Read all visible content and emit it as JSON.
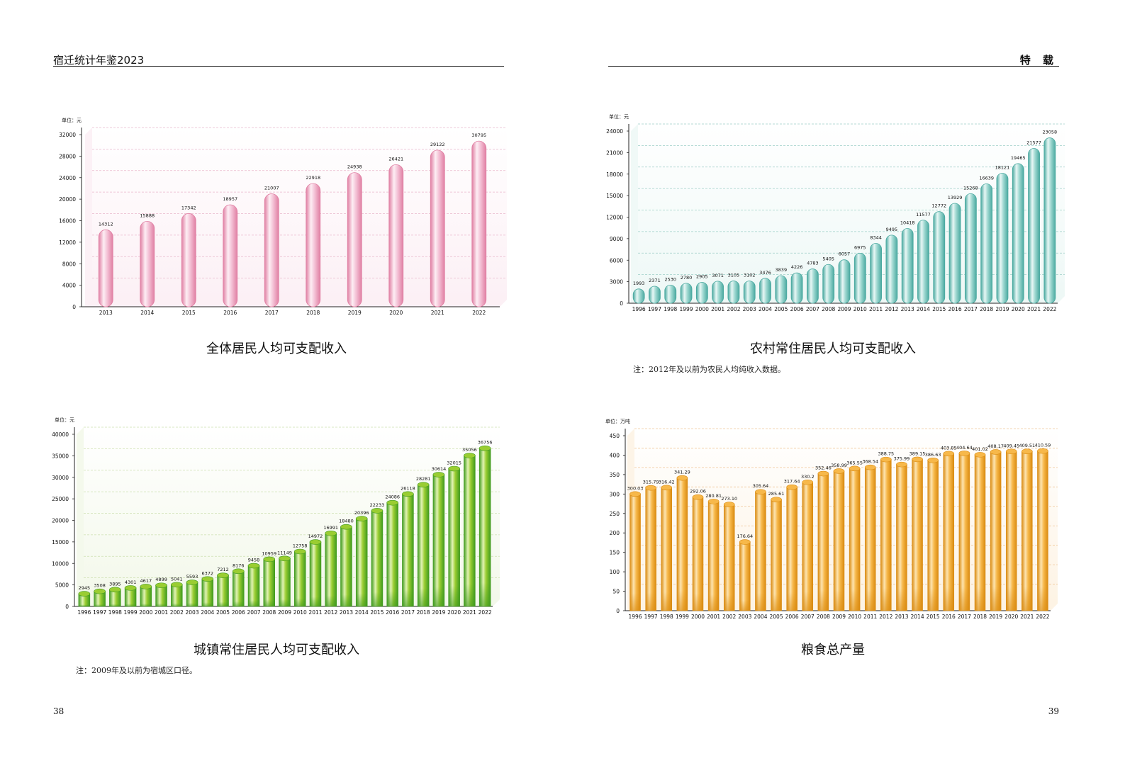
{
  "header": {
    "left_title": "宿迁统计年鉴2023",
    "right_title": "特 载"
  },
  "page_numbers": {
    "left": "38",
    "right": "39"
  },
  "chart_data": [
    {
      "type": "bar",
      "title": "全体居民人均可支配收入",
      "unit_label": "单位：元",
      "theme": "pink",
      "categories": [
        "2013",
        "2014",
        "2015",
        "2016",
        "2017",
        "2018",
        "2019",
        "2020",
        "2021",
        "2022"
      ],
      "values": [
        14312,
        15888,
        17342,
        18957,
        21007,
        22918,
        24938,
        26421,
        29122,
        30795
      ],
      "value_labels": [
        "14312",
        "15888",
        "17342",
        "18957",
        "21007",
        "22918",
        "24938",
        "26421",
        "29122",
        "30795"
      ],
      "ylim": [
        0,
        32000
      ],
      "yticks": [
        0,
        4000,
        8000,
        12000,
        16000,
        20000,
        24000,
        28000,
        32000
      ],
      "note": ""
    },
    {
      "type": "bar",
      "title": "农村常住居民人均可支配收入",
      "unit_label": "单位：元",
      "theme": "teal",
      "categories": [
        "1996",
        "1997",
        "1998",
        "1999",
        "2000",
        "2001",
        "2002",
        "2003",
        "2004",
        "2005",
        "2006",
        "2007",
        "2008",
        "2009",
        "2010",
        "2011",
        "2012",
        "2013",
        "2014",
        "2015",
        "2016",
        "2017",
        "2018",
        "2019",
        "2020",
        "2021",
        "2022"
      ],
      "values": [
        1993,
        2371,
        2530,
        2780,
        2905,
        3071,
        3105,
        3102,
        3476,
        3839,
        4226,
        4783,
        5405,
        6057,
        6975,
        8344,
        9495,
        10418,
        11577,
        12772,
        13929,
        15268,
        16639,
        18121,
        19465,
        21577,
        23058
      ],
      "value_labels": [
        "1993",
        "2371",
        "2530",
        "2780",
        "2905",
        "3071",
        "3105",
        "3102",
        "3476",
        "3839",
        "4226",
        "4783",
        "5405",
        "6057",
        "6975",
        "8344",
        "9495",
        "10418",
        "11577",
        "12772",
        "13929",
        "15268",
        "16639",
        "18121",
        "19465",
        "21577",
        "23058"
      ],
      "ylim": [
        0,
        24000
      ],
      "yticks": [
        0,
        3000,
        6000,
        9000,
        12000,
        15000,
        18000,
        21000,
        24000
      ],
      "note": "注：2012年及以前为农民人均纯收入数据。"
    },
    {
      "type": "bar",
      "title": "城镇常住居民人均可支配收入",
      "unit_label": "单位：元",
      "theme": "green",
      "categories": [
        "1996",
        "1997",
        "1998",
        "1999",
        "2000",
        "2001",
        "2002",
        "2003",
        "2004",
        "2005",
        "2006",
        "2007",
        "2008",
        "2009",
        "2010",
        "2011",
        "2012",
        "2013",
        "2014",
        "2015",
        "2016",
        "2017",
        "2018",
        "2019",
        "2020",
        "2021",
        "2022"
      ],
      "values": [
        2945,
        3508,
        3895,
        4301,
        4617,
        4899,
        5041,
        5593,
        6372,
        7212,
        8176,
        9458,
        10959,
        11149,
        12758,
        14972,
        16991,
        18480,
        20396,
        22233,
        24086,
        26118,
        28281,
        30614,
        32015,
        35056,
        36756
      ],
      "value_labels": [
        "2945",
        "3508",
        "3895",
        "4301",
        "4617",
        "4899",
        "5041",
        "5593",
        "6372",
        "7212",
        "8176",
        "9458",
        "10959",
        "11149",
        "12758",
        "14972",
        "16991",
        "18480",
        "20396",
        "22233",
        "24086",
        "26118",
        "28281",
        "30614",
        "32015",
        "35056",
        "36756"
      ],
      "ylim": [
        0,
        40000
      ],
      "yticks": [
        0,
        5000,
        10000,
        15000,
        20000,
        25000,
        30000,
        35000,
        40000
      ],
      "note": "注：2009年及以前为宿城区口径。"
    },
    {
      "type": "bar",
      "title": "粮食总产量",
      "unit_label": "单位：万吨",
      "theme": "orange",
      "categories": [
        "1996",
        "1997",
        "1998",
        "1999",
        "2000",
        "2001",
        "2002",
        "2003",
        "2004",
        "2005",
        "2006",
        "2007",
        "2008",
        "2009",
        "2010",
        "2011",
        "2012",
        "2013",
        "2014",
        "2015",
        "2016",
        "2017",
        "2018",
        "2019",
        "2020",
        "2021",
        "2022"
      ],
      "values": [
        300.03,
        315.79,
        316.42,
        341.29,
        292.06,
        280.81,
        273.1,
        176.64,
        305.64,
        285.61,
        317.64,
        330.2,
        352.46,
        358.99,
        365.55,
        368.54,
        388.75,
        375.99,
        389.15,
        386.63,
        403.85,
        404.64,
        401.02,
        408.17,
        409.45,
        409.51,
        410.59
      ],
      "value_labels": [
        "300.03",
        "315.79",
        "316.42",
        "341.29",
        "292.06",
        "280.81",
        "273.10",
        "176.64",
        "305.64",
        "285.61",
        "317.64",
        "330.2",
        "352.46",
        "358.99",
        "365.55",
        "368.54",
        "388.75",
        "375.99",
        "389.15",
        "386.63",
        "403.85",
        "404.64",
        "401.02",
        "408.17",
        "409.45",
        "409.51",
        "410.59"
      ],
      "ylim": [
        0,
        450
      ],
      "yticks": [
        0,
        50,
        100,
        150,
        200,
        250,
        300,
        350,
        400,
        450
      ],
      "note": ""
    }
  ],
  "colors": {
    "pink": {
      "bar_dark": "#e07fa3",
      "bar_mid": "#f4c2d6",
      "bar_light": "#fdeef4",
      "bg": "#fcf0f5",
      "grid": "#e9b8cc"
    },
    "teal": {
      "bar_dark": "#4aa9a0",
      "bar_mid": "#9fd8d1",
      "bar_light": "#e8f7f5",
      "bg": "#eef8f6",
      "grid": "#9fcfc8"
    },
    "green": {
      "bar_dark": "#3f9a1e",
      "bar_mid": "#9acd32",
      "bar_light": "#e2f3b3",
      "bg": "#f3f8ea",
      "grid": "#cde0b0"
    },
    "orange": {
      "bar_dark": "#d98a10",
      "bar_mid": "#f7b84a",
      "bar_light": "#fde4b0",
      "bg": "#fdf3e4",
      "grid": "#f0c89a"
    }
  }
}
